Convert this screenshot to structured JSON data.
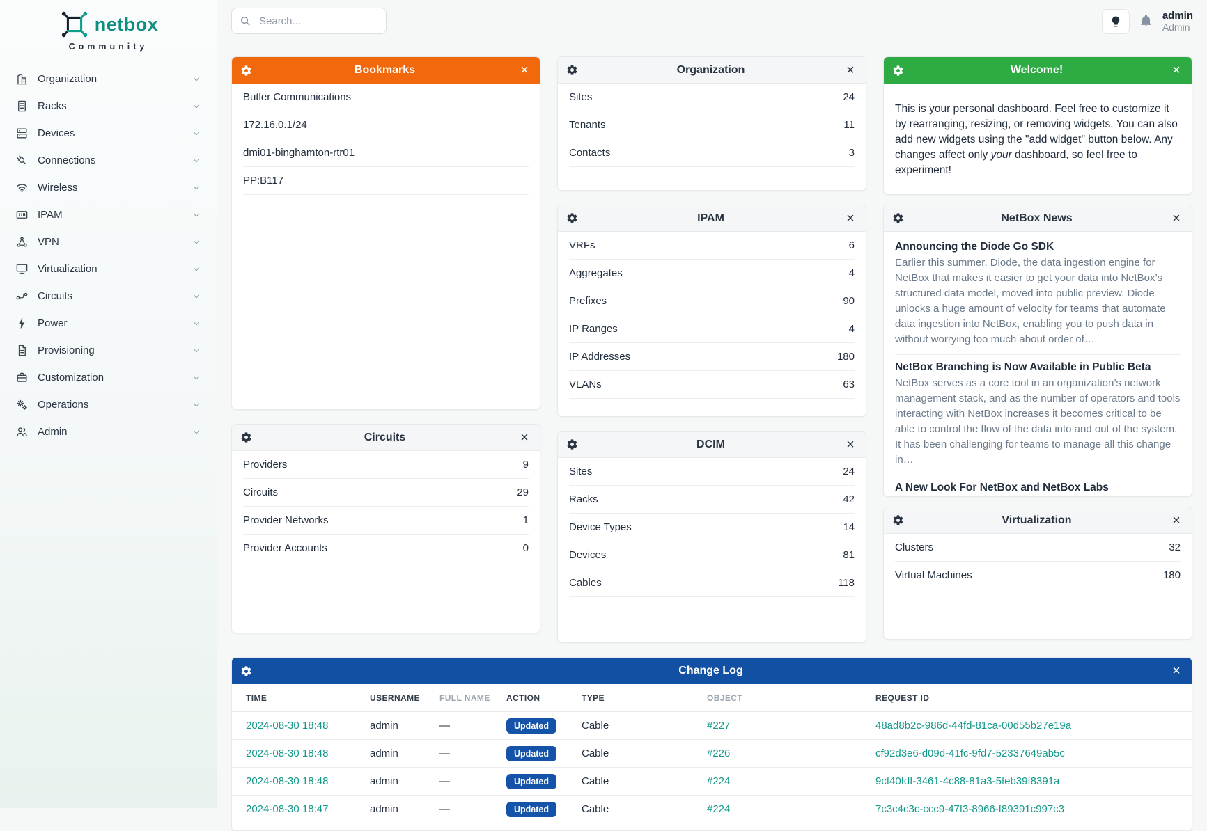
{
  "brand": {
    "name": "netbox",
    "subtitle": "Community"
  },
  "topbar": {
    "search_placeholder": "Search...",
    "user": {
      "username": "admin",
      "role": "Admin"
    }
  },
  "sidebar": {
    "items": [
      {
        "label": "Organization",
        "icon": "organization"
      },
      {
        "label": "Racks",
        "icon": "racks"
      },
      {
        "label": "Devices",
        "icon": "devices"
      },
      {
        "label": "Connections",
        "icon": "connections"
      },
      {
        "label": "Wireless",
        "icon": "wireless"
      },
      {
        "label": "IPAM",
        "icon": "ipam"
      },
      {
        "label": "VPN",
        "icon": "vpn"
      },
      {
        "label": "Virtualization",
        "icon": "virtualization"
      },
      {
        "label": "Circuits",
        "icon": "circuits"
      },
      {
        "label": "Power",
        "icon": "power"
      },
      {
        "label": "Provisioning",
        "icon": "provisioning"
      },
      {
        "label": "Customization",
        "icon": "customization"
      },
      {
        "label": "Operations",
        "icon": "operations"
      },
      {
        "label": "Admin",
        "icon": "admin"
      }
    ]
  },
  "widgets": {
    "bookmarks": {
      "title": "Bookmarks",
      "header_color": "#f2690d",
      "items": [
        "Butler Communications",
        "172.16.0.1/24",
        "dmi01-binghamton-rtr01",
        "PP:B117"
      ]
    },
    "organization": {
      "title": "Organization",
      "rows": [
        {
          "label": "Sites",
          "value": "24"
        },
        {
          "label": "Tenants",
          "value": "11"
        },
        {
          "label": "Contacts",
          "value": "3"
        }
      ]
    },
    "welcome": {
      "title": "Welcome!",
      "header_color": "#2fab43",
      "text_before": "This is your personal dashboard. Feel free to customize it by rearranging, resizing, or removing widgets. You can also add new widgets using the \"add widget\" button below. Any changes affect only ",
      "text_italic": "your",
      "text_after": " dashboard, so feel free to experiment!"
    },
    "ipam": {
      "title": "IPAM",
      "rows": [
        {
          "label": "VRFs",
          "value": "6"
        },
        {
          "label": "Aggregates",
          "value": "4"
        },
        {
          "label": "Prefixes",
          "value": "90"
        },
        {
          "label": "IP Ranges",
          "value": "4"
        },
        {
          "label": "IP Addresses",
          "value": "180"
        },
        {
          "label": "VLANs",
          "value": "63"
        }
      ]
    },
    "news": {
      "title": "NetBox News",
      "articles": [
        {
          "headline": "Announcing the Diode Go SDK",
          "preview": "Earlier this summer, Diode, the data ingestion engine for NetBox that makes it easier to get your data into NetBox’s structured data model, moved into public preview. Diode unlocks a huge amount of velocity for teams that automate data ingestion into NetBox, enabling you to push data in without worrying too much about order of…"
        },
        {
          "headline": "NetBox Branching is Now Available in Public Beta",
          "preview": "NetBox serves as a core tool in an organization’s network management stack, and as the number of operators and tools interacting with NetBox increases it becomes critical to be able to control the flow of the data into and out of the system. It has been challenging for teams to manage all this change in…"
        },
        {
          "headline": "A New Look For NetBox and NetBox Labs",
          "preview": ""
        }
      ]
    },
    "circuits": {
      "title": "Circuits",
      "rows": [
        {
          "label": "Providers",
          "value": "9"
        },
        {
          "label": "Circuits",
          "value": "29"
        },
        {
          "label": "Provider Networks",
          "value": "1"
        },
        {
          "label": "Provider Accounts",
          "value": "0"
        }
      ]
    },
    "dcim": {
      "title": "DCIM",
      "rows": [
        {
          "label": "Sites",
          "value": "24"
        },
        {
          "label": "Racks",
          "value": "42"
        },
        {
          "label": "Device Types",
          "value": "14"
        },
        {
          "label": "Devices",
          "value": "81"
        },
        {
          "label": "Cables",
          "value": "118"
        }
      ]
    },
    "virtualization": {
      "title": "Virtualization",
      "rows": [
        {
          "label": "Clusters",
          "value": "32"
        },
        {
          "label": "Virtual Machines",
          "value": "180"
        }
      ]
    },
    "changelog": {
      "title": "Change Log",
      "header_color": "#1250a3",
      "badge_color": "#1453a8",
      "link_color": "#14998a",
      "columns": [
        {
          "label": "TIME",
          "muted": false
        },
        {
          "label": "USERNAME",
          "muted": false
        },
        {
          "label": "FULL NAME",
          "muted": true
        },
        {
          "label": "ACTION",
          "muted": false
        },
        {
          "label": "TYPE",
          "muted": false
        },
        {
          "label": "OBJECT",
          "muted": true
        },
        {
          "label": "REQUEST ID",
          "muted": false
        }
      ],
      "rows": [
        {
          "time": "2024-08-30 18:48",
          "username": "admin",
          "full_name": "—",
          "action": "Updated",
          "type": "Cable",
          "object": "#227",
          "request_id": "48ad8b2c-986d-44fd-81ca-00d55b27e19a"
        },
        {
          "time": "2024-08-30 18:48",
          "username": "admin",
          "full_name": "—",
          "action": "Updated",
          "type": "Cable",
          "object": "#226",
          "request_id": "cf92d3e6-d09d-41fc-9fd7-52337649ab5c"
        },
        {
          "time": "2024-08-30 18:48",
          "username": "admin",
          "full_name": "—",
          "action": "Updated",
          "type": "Cable",
          "object": "#224",
          "request_id": "9cf40fdf-3461-4c88-81a3-5feb39f8391a"
        },
        {
          "time": "2024-08-30 18:47",
          "username": "admin",
          "full_name": "—",
          "action": "Updated",
          "type": "Cable",
          "object": "#224",
          "request_id": "7c3c4c3c-ccc9-47f3-8966-f89391c997c3"
        }
      ]
    }
  }
}
